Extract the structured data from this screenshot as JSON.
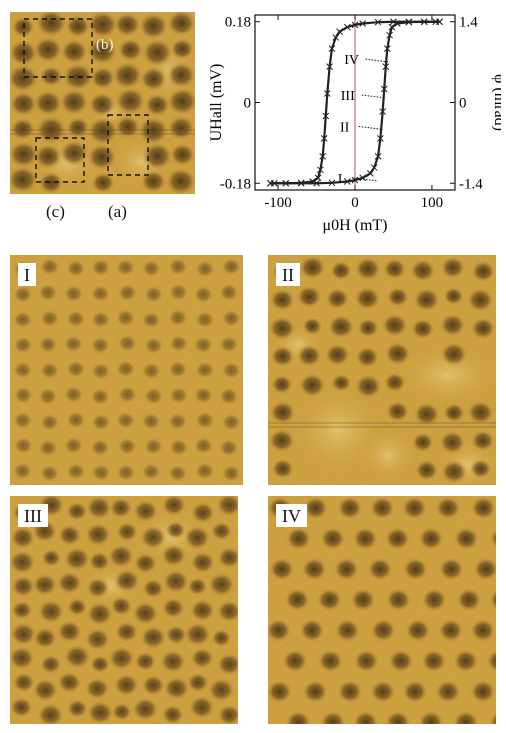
{
  "overview": {
    "box_label_b": "(b)",
    "label_c": "(c)",
    "label_a": "(a)"
  },
  "panels": {
    "I": "I",
    "II": "II",
    "III": "III",
    "IV": "IV"
  },
  "colors": {
    "background_yellow": "#d9a840",
    "skyrmion_dark": "#3a2a10",
    "bright_domain": "#f2d27a",
    "curve": "#222222",
    "zero_line": "#b85050"
  },
  "chart_data": {
    "type": "scatter",
    "title": "",
    "xlabel": "μ0H (mT)",
    "ylabel_left": "UHall (mV)",
    "ylabel_right": "φ (mrad)",
    "xlim": [
      -130,
      130
    ],
    "ylim": [
      -0.195,
      0.195
    ],
    "xticks": [
      -100,
      0,
      100
    ],
    "yticks_left": [
      "-0.18",
      "0",
      "0.18"
    ],
    "yticks_right": [
      "-1.4",
      "0",
      "1.4"
    ],
    "series": [
      {
        "branch": "descending",
        "x": [
          110,
          90,
          70,
          50,
          30,
          10,
          0,
          -10,
          -20,
          -25,
          -30,
          -33,
          -36,
          -38,
          -40,
          -42,
          -45,
          -48,
          -55,
          -70,
          -90,
          -105,
          -110
        ],
        "y": [
          0.18,
          0.18,
          0.18,
          0.18,
          0.179,
          0.176,
          0.173,
          0.168,
          0.158,
          0.145,
          0.12,
          0.08,
          0.02,
          -0.03,
          -0.08,
          -0.12,
          -0.15,
          -0.168,
          -0.176,
          -0.179,
          -0.18,
          -0.18,
          -0.18
        ]
      },
      {
        "branch": "ascending",
        "x": [
          -110,
          -90,
          -70,
          -50,
          -30,
          -10,
          0,
          10,
          20,
          25,
          30,
          33,
          36,
          38,
          40,
          42,
          45,
          48,
          55,
          70,
          90,
          105,
          110
        ],
        "y": [
          -0.18,
          -0.18,
          -0.18,
          -0.18,
          -0.179,
          -0.176,
          -0.173,
          -0.168,
          -0.158,
          -0.145,
          -0.12,
          -0.08,
          -0.02,
          0.03,
          0.08,
          0.12,
          0.15,
          0.168,
          0.176,
          0.179,
          0.18,
          0.18,
          0.18
        ]
      }
    ],
    "annotations": [
      {
        "text": "I",
        "x": 30,
        "y": -0.175
      },
      {
        "text": "II",
        "x": 36,
        "y": -0.06
      },
      {
        "text": "III",
        "x": 40,
        "y": 0.01
      },
      {
        "text": "IV",
        "x": 45,
        "y": 0.09
      }
    ]
  }
}
